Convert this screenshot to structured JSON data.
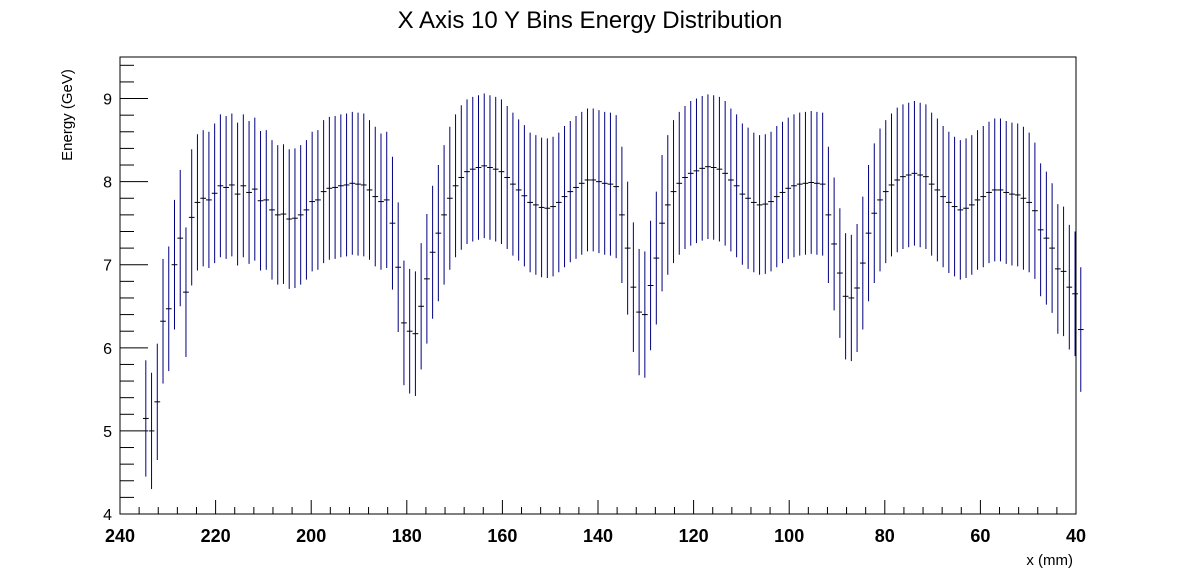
{
  "chart_data": {
    "type": "scatter",
    "title": "X Axis 10 Y Bins Energy Distribution",
    "xlabel": "x (mm)",
    "ylabel": "Energy (GeV)",
    "xlim": [
      240,
      40
    ],
    "ylim": [
      4,
      9.5
    ],
    "x_ticks": [
      "240",
      "220",
      "200",
      "180",
      "160",
      "140",
      "120",
      "100",
      "80",
      "60",
      "40"
    ],
    "y_ticks": [
      "4",
      "5",
      "6",
      "7",
      "8",
      "9"
    ],
    "grid": false,
    "legend": "none",
    "color": "#000080",
    "x_start": 234.6,
    "x_step": 1.2,
    "bin_halfwidth": 0.6,
    "series": [
      {
        "values": [
          5.15,
          5.0,
          5.35,
          6.32,
          6.47,
          7.0,
          7.32,
          6.67,
          7.57,
          7.75,
          7.8,
          7.78,
          7.86,
          7.95,
          7.93,
          7.96,
          7.85,
          7.95,
          7.87,
          7.91,
          7.77,
          7.78,
          7.66,
          7.6,
          7.61,
          7.55,
          7.56,
          7.6,
          7.66,
          7.76,
          7.78,
          7.88,
          7.92,
          7.93,
          7.95,
          7.96,
          7.98,
          7.97,
          7.96,
          7.9,
          7.82,
          7.76,
          7.78,
          7.5,
          6.97,
          6.3,
          6.2,
          6.17,
          6.5,
          6.83,
          7.15,
          7.38,
          7.6,
          7.8,
          7.95,
          8.05,
          8.12,
          8.15,
          8.17,
          8.19,
          8.17,
          8.15,
          8.12,
          8.05,
          7.97,
          7.9,
          7.83,
          7.75,
          7.72,
          7.69,
          7.68,
          7.7,
          7.75,
          7.82,
          7.88,
          7.93,
          7.98,
          8.02,
          8.02,
          8.0,
          7.98,
          7.97,
          7.94,
          7.6,
          7.2,
          6.73,
          6.43,
          6.4,
          6.75,
          7.08,
          7.5,
          7.72,
          7.88,
          7.98,
          8.05,
          8.1,
          8.13,
          8.16,
          8.18,
          8.17,
          8.15,
          8.1,
          8.02,
          7.95,
          7.85,
          7.8,
          7.75,
          7.72,
          7.73,
          7.76,
          7.82,
          7.87,
          7.92,
          7.95,
          7.97,
          7.98,
          7.99,
          7.98,
          7.97,
          7.6,
          7.25,
          6.9,
          6.62,
          6.6,
          6.72,
          7.02,
          7.38,
          7.62,
          7.78,
          7.88,
          7.96,
          8.02,
          8.06,
          8.08,
          8.1,
          8.08,
          8.06,
          7.97,
          7.9,
          7.82,
          7.75,
          7.7,
          7.66,
          7.68,
          7.72,
          7.78,
          7.82,
          7.87,
          7.9,
          7.9,
          7.87,
          7.85,
          7.84,
          7.8,
          7.75,
          7.65,
          7.42,
          7.32,
          7.2,
          6.95,
          6.92,
          6.73,
          6.65,
          6.22
        ]
      }
    ],
    "errors": [
      0.7,
      0.7,
      0.7,
      0.75,
      0.75,
      0.78,
      0.82,
      0.78,
      0.82,
      0.82,
      0.82,
      0.82,
      0.84,
      0.86,
      0.86,
      0.86,
      0.86,
      0.86,
      0.86,
      0.86,
      0.84,
      0.84,
      0.84,
      0.84,
      0.84,
      0.84,
      0.84,
      0.84,
      0.84,
      0.84,
      0.84,
      0.86,
      0.86,
      0.86,
      0.86,
      0.86,
      0.86,
      0.86,
      0.86,
      0.84,
      0.84,
      0.82,
      0.82,
      0.8,
      0.78,
      0.75,
      0.75,
      0.75,
      0.76,
      0.78,
      0.8,
      0.82,
      0.84,
      0.86,
      0.86,
      0.87,
      0.87,
      0.87,
      0.87,
      0.87,
      0.87,
      0.87,
      0.87,
      0.86,
      0.86,
      0.85,
      0.85,
      0.84,
      0.84,
      0.84,
      0.84,
      0.84,
      0.84,
      0.85,
      0.85,
      0.86,
      0.86,
      0.86,
      0.86,
      0.86,
      0.86,
      0.86,
      0.86,
      0.82,
      0.8,
      0.78,
      0.76,
      0.76,
      0.78,
      0.8,
      0.82,
      0.84,
      0.86,
      0.86,
      0.86,
      0.87,
      0.87,
      0.87,
      0.87,
      0.87,
      0.87,
      0.87,
      0.86,
      0.86,
      0.85,
      0.85,
      0.84,
      0.84,
      0.84,
      0.84,
      0.85,
      0.85,
      0.85,
      0.86,
      0.86,
      0.86,
      0.86,
      0.86,
      0.86,
      0.82,
      0.8,
      0.78,
      0.76,
      0.76,
      0.77,
      0.8,
      0.82,
      0.84,
      0.86,
      0.86,
      0.86,
      0.87,
      0.87,
      0.87,
      0.87,
      0.87,
      0.87,
      0.86,
      0.86,
      0.85,
      0.85,
      0.84,
      0.84,
      0.84,
      0.84,
      0.84,
      0.85,
      0.85,
      0.86,
      0.86,
      0.86,
      0.86,
      0.86,
      0.86,
      0.84,
      0.82,
      0.8,
      0.8,
      0.78,
      0.78,
      0.78,
      0.75,
      0.75,
      0.75
    ]
  }
}
